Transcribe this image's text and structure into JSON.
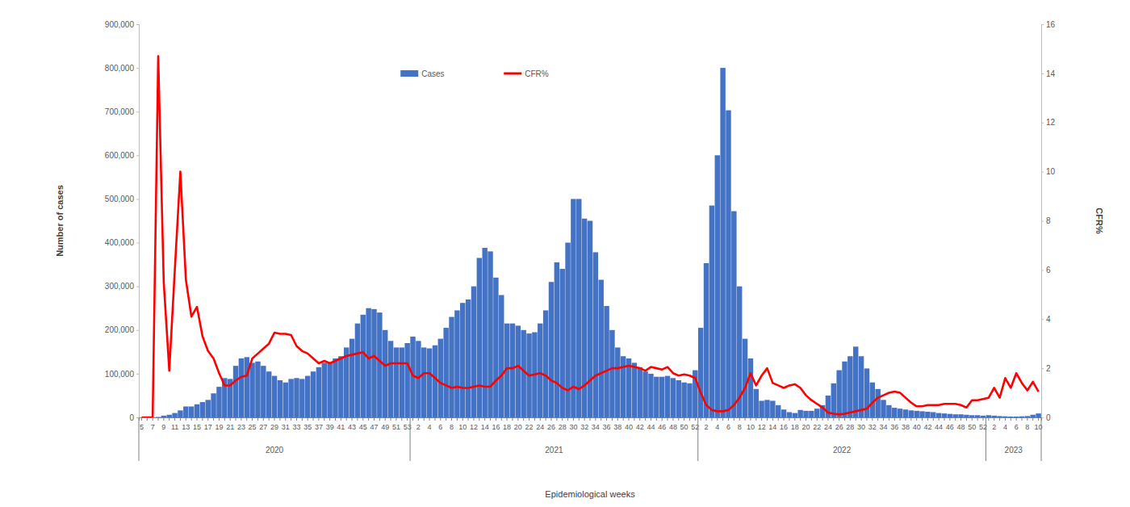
{
  "chart_data": {
    "type": "bar",
    "x_label": "Epidemiological weeks",
    "y_label": "Number of cases",
    "y2_label": "CFR%",
    "legend": "top",
    "grid": false,
    "categories": [
      "5",
      null,
      "7",
      null,
      "9",
      null,
      "11",
      null,
      "13",
      null,
      "15",
      null,
      "17",
      null,
      "19",
      null,
      "21",
      null,
      "23",
      null,
      "25",
      null,
      "27",
      null,
      "29",
      null,
      "31",
      null,
      "33",
      null,
      "35",
      null,
      "37",
      null,
      "39",
      null,
      "41",
      null,
      "43",
      null,
      "45",
      null,
      "47",
      null,
      "49",
      null,
      "51",
      null,
      "53",
      null,
      "2",
      null,
      "4",
      null,
      "6",
      null,
      "8",
      null,
      "10",
      null,
      "12",
      null,
      "14",
      null,
      "16",
      null,
      "18",
      null,
      "20",
      null,
      "22",
      null,
      "24",
      null,
      "26",
      null,
      "28",
      null,
      "30",
      null,
      "32",
      null,
      "34",
      null,
      "36",
      null,
      "38",
      null,
      "40",
      null,
      "42",
      null,
      "44",
      null,
      "46",
      null,
      "48",
      null,
      "50",
      null,
      "52",
      null,
      "2",
      null,
      "4",
      null,
      "6",
      null,
      "8",
      null,
      "10",
      null,
      "12",
      null,
      "14",
      null,
      "16",
      null,
      "18",
      null,
      "20",
      null,
      "22",
      null,
      "24",
      null,
      "26",
      null,
      "28",
      null,
      "30",
      null,
      "32",
      null,
      "34",
      null,
      "36",
      null,
      "38",
      null,
      "40",
      null,
      "42",
      null,
      "44",
      null,
      "46",
      null,
      "48",
      null,
      "50",
      null,
      "52",
      null,
      "2",
      null,
      "4",
      null,
      "6",
      null,
      "8",
      null,
      "10"
    ],
    "groups": [
      {
        "label": "2020",
        "size": 49
      },
      {
        "label": "2021",
        "size": 52
      },
      {
        "label": "2022",
        "size": 52
      },
      {
        "label": "2023",
        "size": 10
      }
    ],
    "ylim": [
      0,
      900000
    ],
    "yticks": [
      0,
      {
        "value": 100000,
        "label": "100,000"
      },
      {
        "value": 200000,
        "label": "200,000"
      },
      {
        "value": 300000,
        "label": "300,000"
      },
      {
        "value": 400000,
        "label": "400,000"
      },
      {
        "value": 500000,
        "label": "500,000"
      },
      {
        "value": 600000,
        "label": "600,000"
      },
      {
        "value": 700000,
        "label": "700,000"
      },
      {
        "value": 800000,
        "label": "800,000"
      },
      {
        "value": 900000,
        "label": "900,000"
      }
    ],
    "y2lim": [
      0,
      16
    ],
    "y2ticks": [
      0,
      2,
      4,
      6,
      8,
      10,
      12,
      14,
      16
    ],
    "series": [
      {
        "name": "Cases",
        "type": "bar",
        "color": "#4472c4",
        "values": [
          0,
          0,
          0,
          1000,
          4000,
          6000,
          10000,
          16000,
          25000,
          25000,
          30000,
          35000,
          40000,
          55000,
          70000,
          90000,
          88000,
          118000,
          135000,
          138000,
          125000,
          128000,
          118000,
          105000,
          95000,
          85000,
          80000,
          88000,
          90000,
          88000,
          95000,
          105000,
          115000,
          125000,
          125000,
          135000,
          140000,
          160000,
          180000,
          215000,
          235000,
          250000,
          248000,
          240000,
          200000,
          175000,
          160000,
          160000,
          170000,
          185000,
          175000,
          160000,
          158000,
          165000,
          180000,
          205000,
          230000,
          245000,
          262000,
          270000,
          300000,
          365000,
          388000,
          380000,
          320000,
          280000,
          215000,
          215000,
          210000,
          200000,
          192000,
          195000,
          215000,
          245000,
          310000,
          355000,
          340000,
          400000,
          500000,
          500000,
          455000,
          450000,
          378000,
          315000,
          255000,
          200000,
          160000,
          140000,
          135000,
          125000,
          115000,
          105000,
          100000,
          93000,
          93000,
          95000,
          90000,
          85000,
          80000,
          78000,
          108000,
          205000,
          353000,
          485000,
          600000,
          800000,
          703000,
          472000,
          300000,
          180000,
          135000,
          65000,
          38000,
          40000,
          38000,
          28000,
          18000,
          12000,
          10000,
          17000,
          15000,
          15000,
          20000,
          28000,
          50000,
          78000,
          108000,
          128000,
          140000,
          162000,
          140000,
          112000,
          80000,
          65000,
          40000,
          28000,
          22000,
          20000,
          18000,
          16000,
          15000,
          14000,
          13000,
          12000,
          10000,
          9000,
          8000,
          7000,
          7000,
          6000,
          5000,
          5000,
          4000,
          5000,
          4000,
          3000,
          2500,
          2000,
          2000,
          2500,
          3000,
          6000,
          9000
        ]
      },
      {
        "name": "CFR%",
        "type": "line",
        "axis": "y2",
        "color": "#ff0000",
        "values": [
          0,
          0,
          0,
          14.7,
          5.5,
          1.9,
          6,
          10,
          5.6,
          4.1,
          4.5,
          3.3,
          2.7,
          2.4,
          1.8,
          1.3,
          1.3,
          1.5,
          1.65,
          1.7,
          2.4,
          2.6,
          2.8,
          3.0,
          3.45,
          3.4,
          3.4,
          3.35,
          2.9,
          2.7,
          2.6,
          2.4,
          2.2,
          2.3,
          2.2,
          2.3,
          2.4,
          2.5,
          2.55,
          2.6,
          2.65,
          2.4,
          2.5,
          2.3,
          2.1,
          2.2,
          2.2,
          2.2,
          2.2,
          1.7,
          1.6,
          1.8,
          1.8,
          1.6,
          1.4,
          1.3,
          1.2,
          1.25,
          1.2,
          1.2,
          1.25,
          1.3,
          1.25,
          1.25,
          1.5,
          1.7,
          2.0,
          2.0,
          2.1,
          1.9,
          1.7,
          1.75,
          1.8,
          1.7,
          1.5,
          1.4,
          1.2,
          1.1,
          1.25,
          1.15,
          1.3,
          1.5,
          1.7,
          1.8,
          1.9,
          2.0,
          2.0,
          2.05,
          2.1,
          2.05,
          2.0,
          1.9,
          2.05,
          2.0,
          1.95,
          2.05,
          1.8,
          1.7,
          1.75,
          1.7,
          1.6,
          1.0,
          0.5,
          0.3,
          0.25,
          0.25,
          0.3,
          0.5,
          0.8,
          1.2,
          1.8,
          1.3,
          1.7,
          2.0,
          1.4,
          1.3,
          1.2,
          1.3,
          1.35,
          1.2,
          0.9,
          0.7,
          0.55,
          0.4,
          0.2,
          0.15,
          0.12,
          0.15,
          0.2,
          0.25,
          0.3,
          0.35,
          0.6,
          0.8,
          0.9,
          1.0,
          1.05,
          1.0,
          0.8,
          0.6,
          0.45,
          0.45,
          0.5,
          0.5,
          0.5,
          0.55,
          0.55,
          0.55,
          0.5,
          0.4,
          0.7,
          0.7,
          0.75,
          0.8,
          1.2,
          0.8,
          1.6,
          1.2,
          1.8,
          1.4,
          1.1,
          1.45,
          1.05
        ]
      }
    ]
  }
}
